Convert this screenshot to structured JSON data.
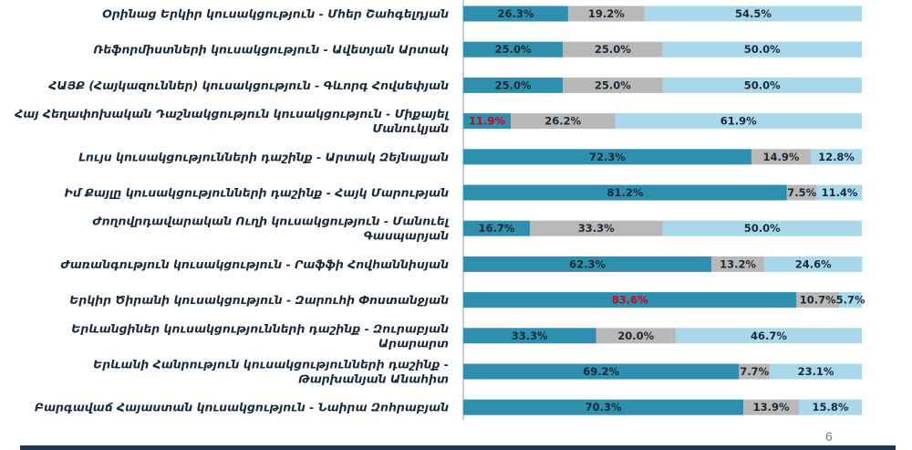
{
  "chart_data": {
    "type": "bar",
    "orientation": "horizontal",
    "stacked": "percent",
    "legend": "none",
    "grid": false,
    "xlim": [
      0,
      100
    ],
    "colors": [
      "#2e8fae",
      "#b8b8b8",
      "#a9d8ea"
    ],
    "highlight_color": "#d0001b",
    "categories": [
      [
        "Օրինաց Երկիր կուսակցություն - Մհեր Շահգելդյան"
      ],
      [
        "Ռեֆորմիստների կուսակցություն - Ավետյան Արտակ"
      ],
      [
        "ՀԱՅՔ (Հայկազուններ) կուսակցություն - Գևորգ Հովսեփյան"
      ],
      [
        "Հայ Հեղափոխական Դաշնակցություն կուսակցություն - Միքայել",
        "Մանուկյան"
      ],
      [
        "Լույս կուսակցությունների դաշինք - Արտակ Զեյնալյան"
      ],
      [
        "Իմ Քայլը կուսակցությունների դաշինք - Հայկ Մարության"
      ],
      [
        "Ժողովրդավարական Ուղի կուսակցություն - Մանուել",
        "Գասպարյան"
      ],
      [
        "Ժառանգություն կուսակցություն - Րաֆֆի Հովհաննիսյան"
      ],
      [
        "Երկիր Ծիրանի կուսակցություն - Զարուհի Փոստանջյան"
      ],
      [
        "Երևանցիներ կուսակցությունների դաշինք - Զուրաբյան",
        "Արարարտ"
      ],
      [
        "Երևանի Հանրություն կուսակցությունների դաշինք -",
        "Թարխանյան Անահիտ"
      ],
      [
        "Բարգավաճ Հայաստան կուսակցություն - Նաիրա Զոհրաբյան"
      ]
    ],
    "series": [
      {
        "values": [
          26.3,
          25.0,
          25.0,
          11.9,
          72.3,
          81.2,
          16.7,
          62.3,
          83.6,
          33.3,
          69.2,
          70.3
        ],
        "labels": [
          "26.3%",
          "25.0%",
          "25.0%",
          "11.9%",
          "72.3%",
          "81.2%",
          "16.7%",
          "62.3%",
          "83.6%",
          "33.3%",
          "69.2%",
          "70.3%"
        ],
        "highlight": [
          false,
          false,
          false,
          true,
          false,
          false,
          false,
          false,
          true,
          false,
          false,
          false
        ]
      },
      {
        "values": [
          19.2,
          25.0,
          25.0,
          26.2,
          14.9,
          7.5,
          33.3,
          13.2,
          10.7,
          20.0,
          7.7,
          13.9
        ],
        "labels": [
          "19.2%",
          "25.0%",
          "25.0%",
          "26.2%",
          "14.9%",
          "7.5%",
          "33.3%",
          "13.2%",
          "10.7%",
          "20.0%",
          "7.7%",
          "13.9%"
        ]
      },
      {
        "values": [
          54.5,
          50.0,
          50.0,
          61.9,
          12.8,
          11.4,
          50.0,
          24.6,
          5.7,
          46.7,
          23.1,
          15.8
        ],
        "labels": [
          "54.5%",
          "50.0%",
          "50.0%",
          "61.9%",
          "12.8%",
          "11.4%",
          "50.0%",
          "24.6%",
          "5.7%",
          "46.7%",
          "23.1%",
          "15.8%"
        ]
      }
    ]
  },
  "footer": {
    "page_number": "6"
  }
}
